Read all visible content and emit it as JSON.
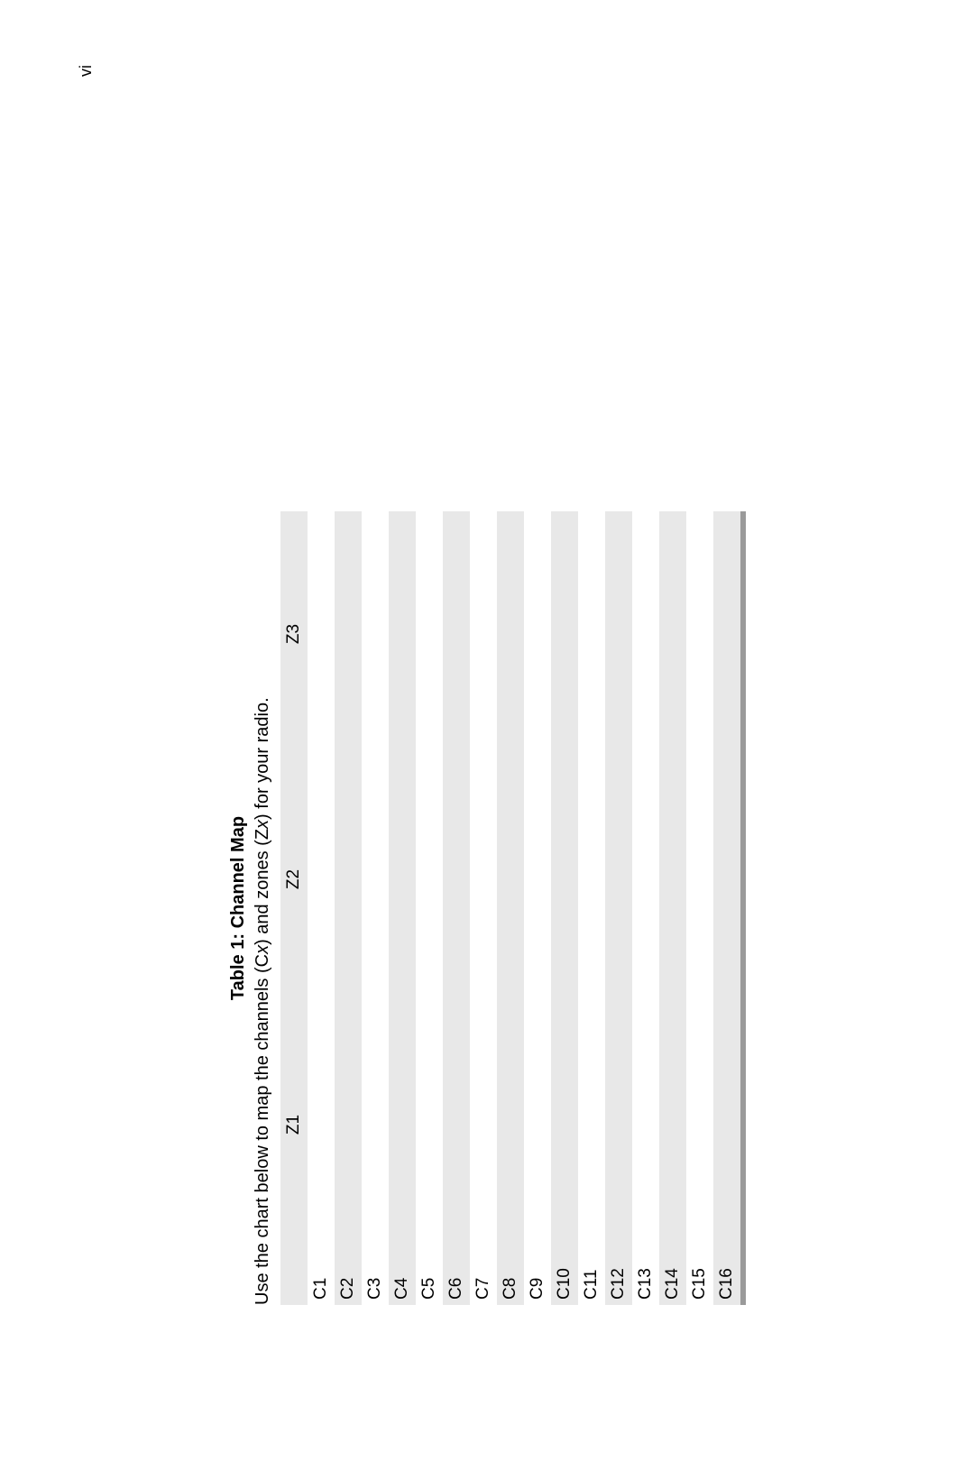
{
  "page_number": "vi",
  "table": {
    "title_prefix": "Table 1: ",
    "title_bold": "Channel Map",
    "subtitle_parts": [
      "Use the chart below to map the channels (C",
      "x",
      ") and zones (Z",
      "x",
      ") for your radio."
    ],
    "zone_headers": [
      "Z1",
      "Z2",
      "Z3"
    ],
    "row_headers": [
      "C1",
      "C2",
      "C3",
      "C4",
      "C5",
      "C6",
      "C7",
      "C8",
      "C9",
      "C10",
      "C11",
      "C12",
      "C13",
      "C14",
      "C15",
      "C16"
    ],
    "header_bg": "#e8e8e8",
    "row_alt_bg": "#e8e8e8",
    "row_bg": "#ffffff",
    "bottom_bar_color": "#9a9a9a",
    "font_size_pt": 14,
    "font_family": "Arial"
  }
}
